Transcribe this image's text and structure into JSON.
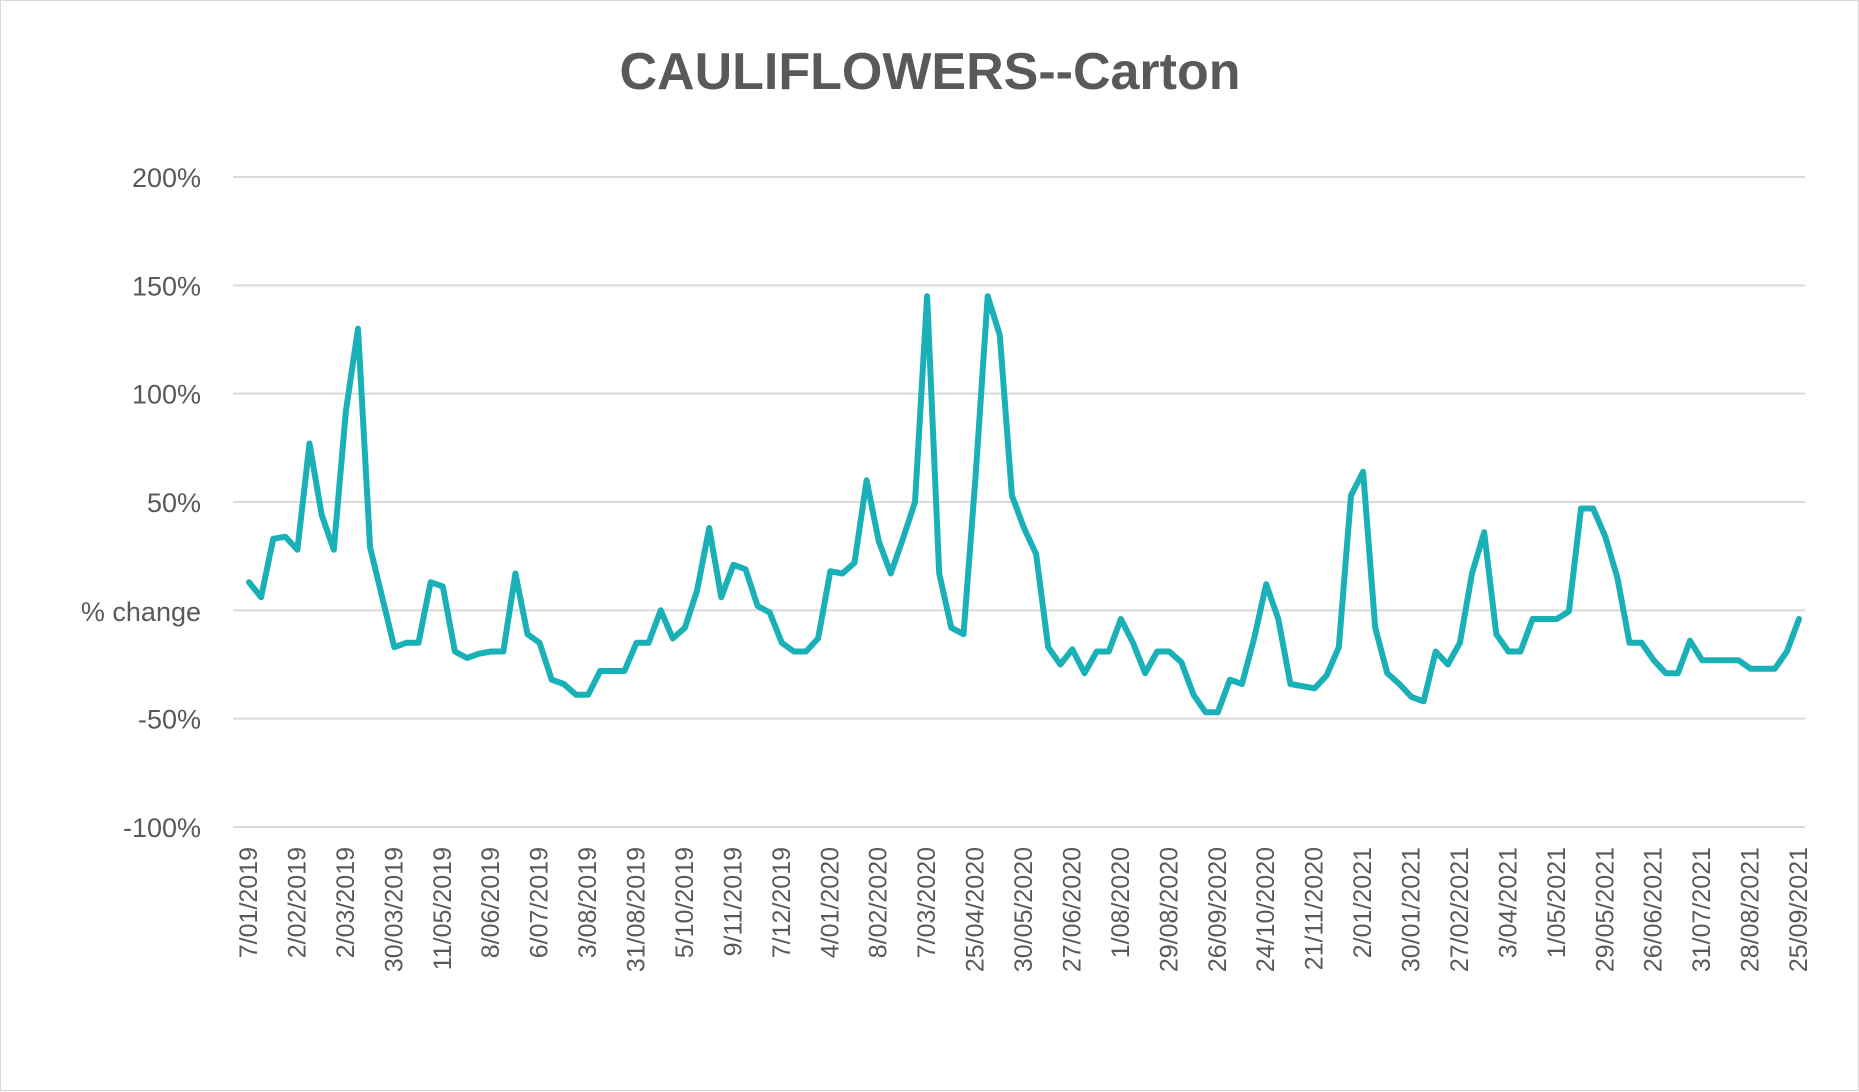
{
  "chart_data": {
    "type": "line",
    "title": "CAULIFLOWERS--Carton",
    "ylabel": "% change",
    "xlabel": "",
    "ylim": [
      -100,
      200
    ],
    "ytick_step": 50,
    "grid": true,
    "legend": "none",
    "colors": {
      "series": "#1ab0b8",
      "grid": "#d9d9d9",
      "text": "#595959"
    },
    "x_tick_labels": [
      "7/01/2019",
      "2/02/2019",
      "2/03/2019",
      "30/03/2019",
      "11/05/2019",
      "8/06/2019",
      "6/07/2019",
      "3/08/2019",
      "31/08/2019",
      "5/10/2019",
      "9/11/2019",
      "7/12/2019",
      "4/01/2020",
      "8/02/2020",
      "7/03/2020",
      "25/04/2020",
      "30/05/2020",
      "27/06/2020",
      "1/08/2020",
      "29/08/2020",
      "26/09/2020",
      "24/10/2020",
      "21/11/2020",
      "2/01/2021",
      "30/01/2021",
      "27/02/2021",
      "3/04/2021",
      "1/05/2021",
      "29/05/2021",
      "26/06/2021",
      "31/07/2021",
      "28/08/2021",
      "25/09/2021"
    ],
    "series": [
      {
        "values": [
          13,
          6,
          33,
          34,
          28,
          77,
          44,
          28,
          92,
          130,
          29,
          6,
          -17,
          -15,
          -15,
          13,
          11,
          -19,
          -22,
          -20,
          -19,
          -19,
          17,
          -11,
          -15,
          -32,
          -34,
          -39,
          -39,
          -28,
          -28,
          -28,
          -15,
          -15,
          0,
          -13,
          -8,
          9,
          38,
          6,
          21,
          19,
          2,
          -1,
          -15,
          -19,
          -19,
          -13,
          18,
          17,
          22,
          60,
          32,
          17,
          33,
          50,
          145,
          17,
          -8,
          -11,
          62,
          145,
          127,
          53,
          38,
          26,
          -17,
          -25,
          -18,
          -29,
          -19,
          -19,
          -4,
          -15,
          -29,
          -19,
          -19,
          -24,
          -39,
          -47,
          -47,
          -32,
          -34,
          -13,
          12,
          -4,
          -34,
          -35,
          -36,
          -30,
          -17,
          53,
          64,
          -8,
          -29,
          -34,
          -40,
          -42,
          -19,
          -25,
          -15,
          17,
          36,
          -11,
          -19,
          -19,
          -4,
          -4,
          -4,
          -0.5,
          47,
          47,
          34,
          15,
          -15,
          -15,
          -23,
          -29,
          -29,
          -14,
          -23,
          -23,
          -23,
          -23,
          -27,
          -27,
          -27,
          -19,
          -4
        ]
      }
    ]
  }
}
